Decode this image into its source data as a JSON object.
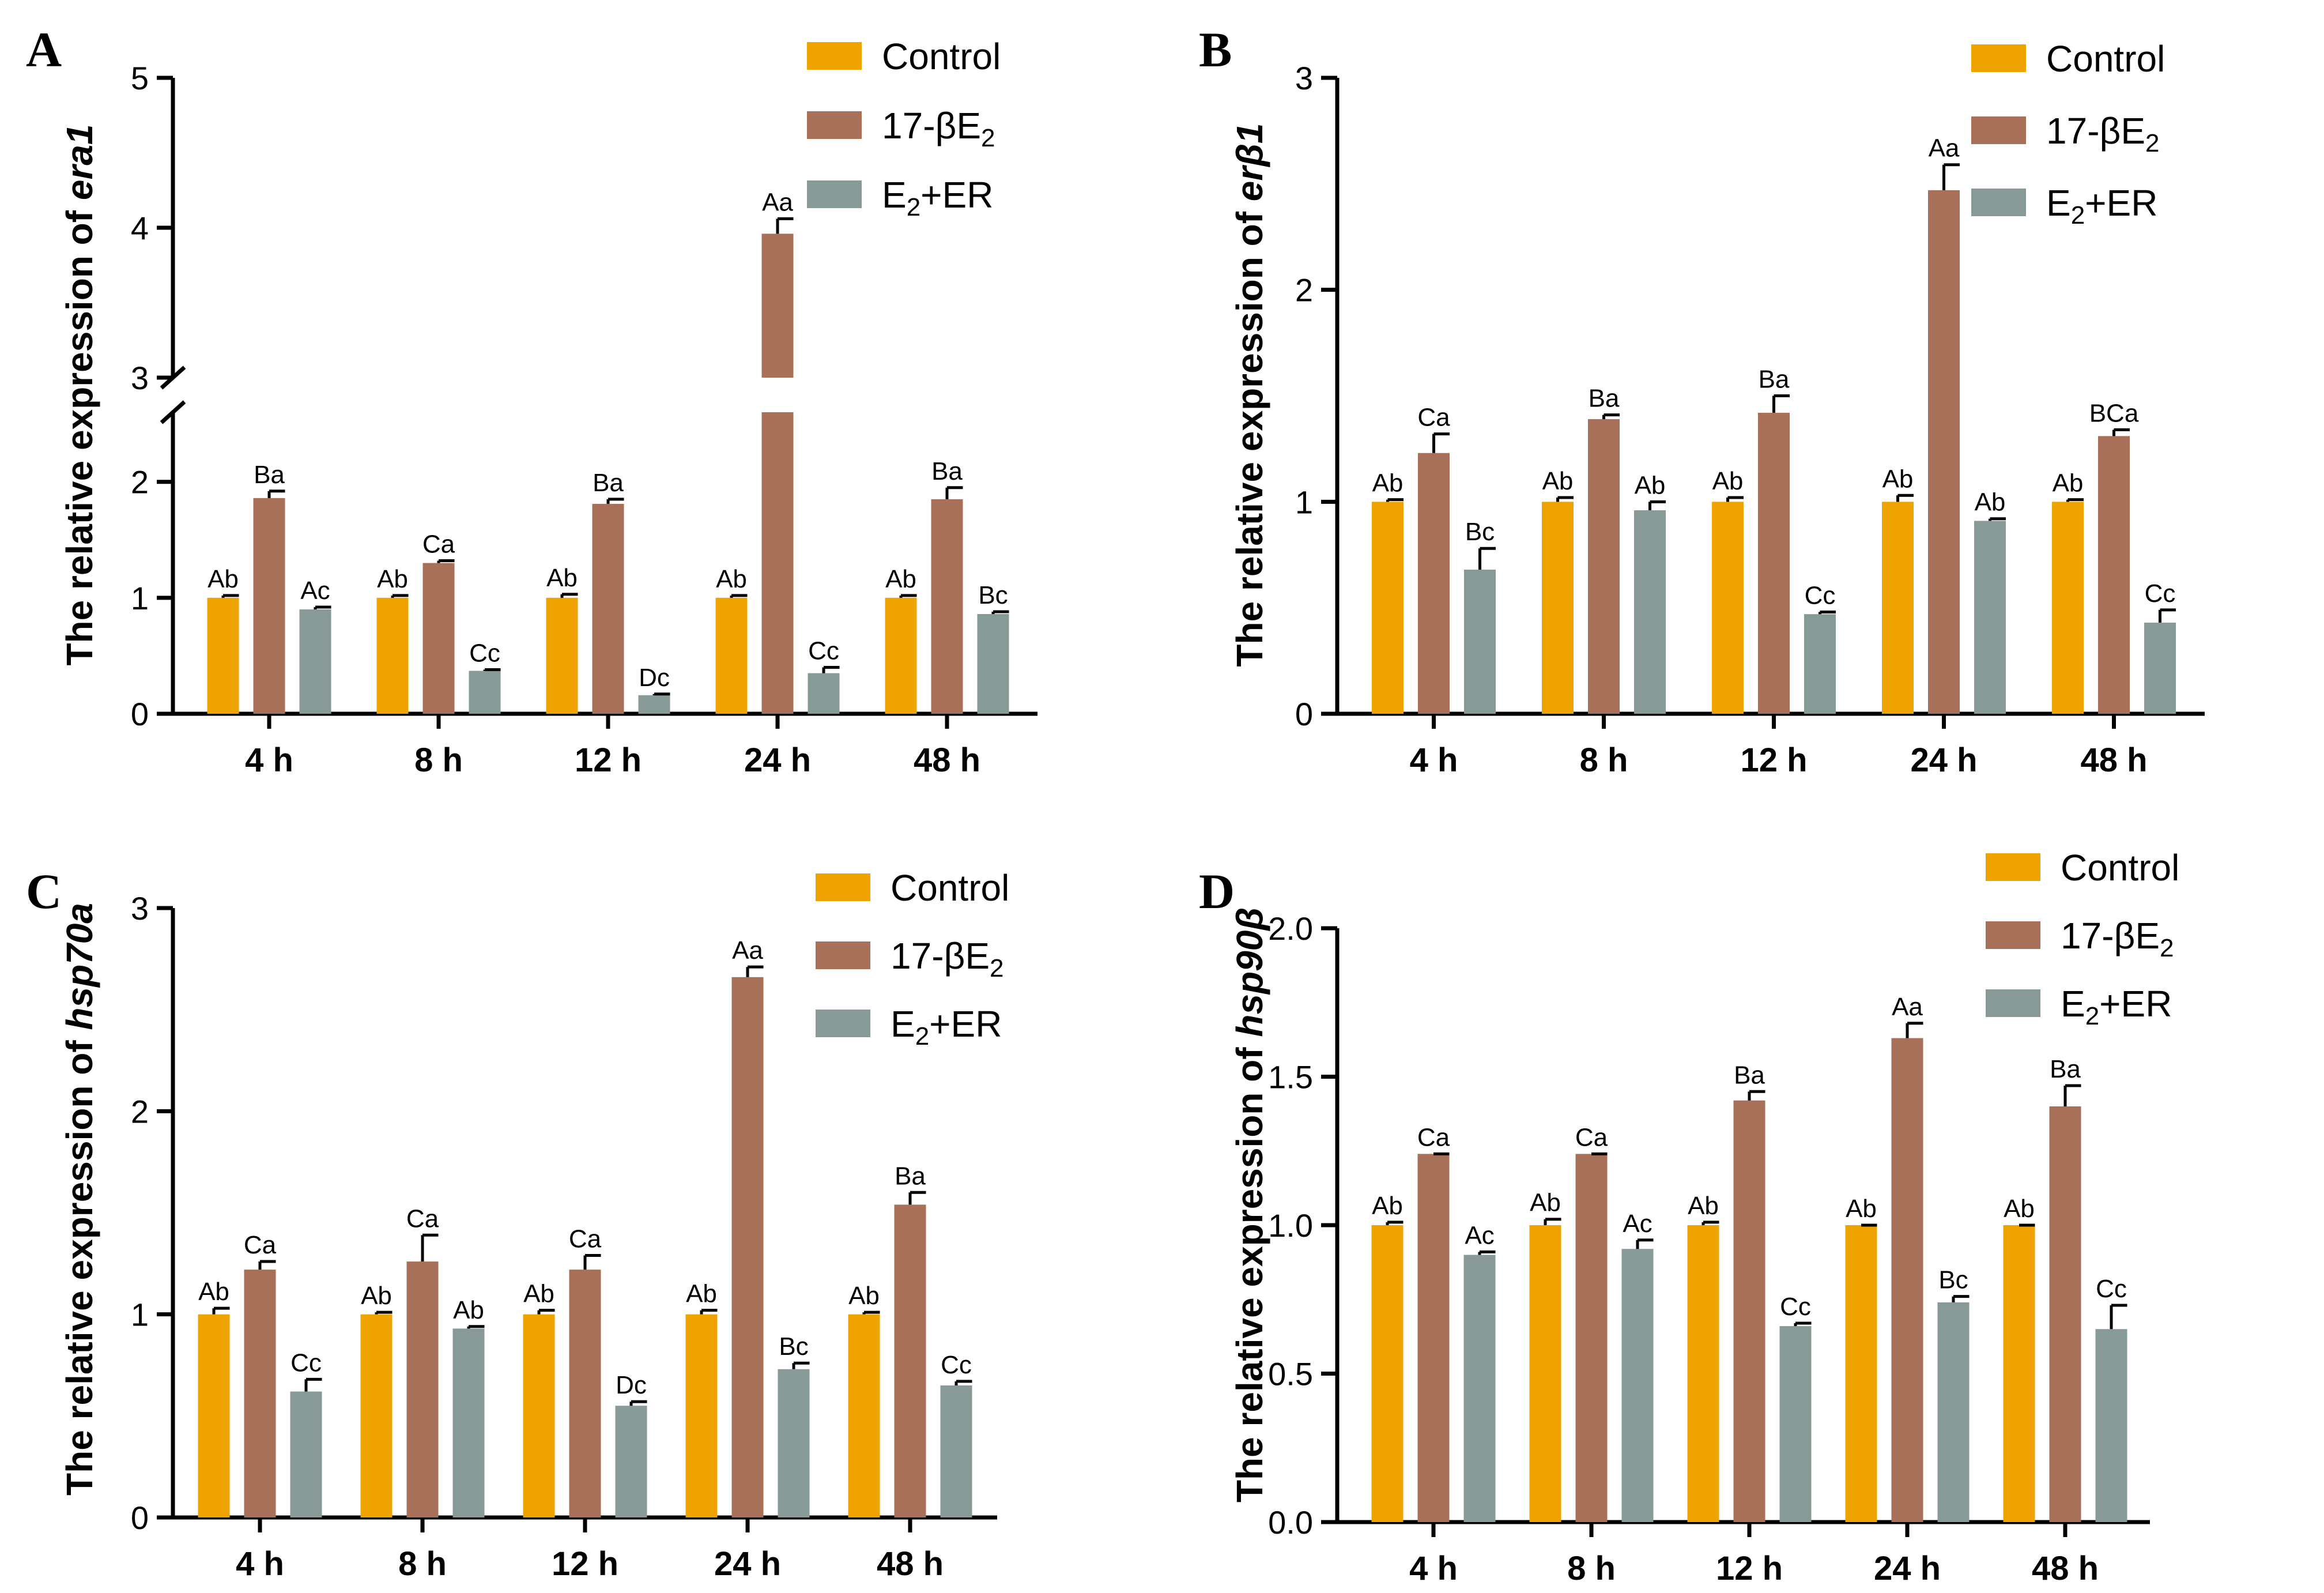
{
  "colors": {
    "Control": "#eea300",
    "17-βE2": "#a87058",
    "E2+ER": "#879a97",
    "text": "#000000",
    "axis": "#000000"
  },
  "legend": [
    {
      "key": "Control",
      "main": "Control",
      "sub": "",
      "post": ""
    },
    {
      "key": "17-βE2",
      "main": "17-βE",
      "sub": "2",
      "post": ""
    },
    {
      "key": "E2+ER",
      "main": "E",
      "sub": "2",
      "post": "+ER"
    }
  ],
  "chart_data": [
    {
      "type": "bar",
      "panel": "A",
      "ylabel_prefix": "The relative expression of ",
      "ylabel_gene": "era1",
      "categories": [
        "4 h",
        "8 h",
        "12 h",
        "24 h",
        "48 h"
      ],
      "yticks": [
        "0",
        "1",
        "2",
        "3",
        "4",
        "5"
      ],
      "ylim": [
        0,
        5
      ],
      "axis_break": {
        "lower": [
          0,
          2.6
        ],
        "upper": [
          3,
          5
        ]
      },
      "series": [
        {
          "name": "Control",
          "values": [
            1.0,
            1.0,
            1.0,
            1.0,
            1.0
          ],
          "errors": [
            0.02,
            0.02,
            0.03,
            0.02,
            0.02
          ],
          "labels": [
            "Ab",
            "Ab",
            "Ab",
            "Ab",
            "Ab"
          ]
        },
        {
          "name": "17-βE2",
          "values": [
            1.86,
            1.3,
            1.81,
            3.96,
            1.85
          ],
          "errors": [
            0.06,
            0.02,
            0.04,
            0.1,
            0.1
          ],
          "labels": [
            "Ba",
            "Ca",
            "Ba",
            "Aa",
            "Ba"
          ]
        },
        {
          "name": "E2+ER",
          "values": [
            0.9,
            0.37,
            0.16,
            0.35,
            0.86
          ],
          "errors": [
            0.02,
            0.01,
            0.01,
            0.05,
            0.02
          ],
          "labels": [
            "Ac",
            "Cc",
            "Dc",
            "Cc",
            "Bc"
          ]
        }
      ]
    },
    {
      "type": "bar",
      "panel": "B",
      "ylabel_prefix": "The relative expression of ",
      "ylabel_gene": "erβ1",
      "categories": [
        "4 h",
        "8 h",
        "12 h",
        "24 h",
        "48 h"
      ],
      "yticks": [
        "0",
        "1",
        "2",
        "3"
      ],
      "ylim": [
        0,
        3
      ],
      "series": [
        {
          "name": "Control",
          "values": [
            1.0,
            1.0,
            1.0,
            1.0,
            1.0
          ],
          "errors": [
            0.01,
            0.02,
            0.02,
            0.03,
            0.01
          ],
          "labels": [
            "Ab",
            "Ab",
            "Ab",
            "Ab",
            "Ab"
          ]
        },
        {
          "name": "17-βE2",
          "values": [
            1.23,
            1.39,
            1.42,
            2.47,
            1.31
          ],
          "errors": [
            0.09,
            0.02,
            0.08,
            0.12,
            0.03
          ],
          "labels": [
            "Ca",
            "Ba",
            "Ba",
            "Aa",
            "BCa"
          ]
        },
        {
          "name": "E2+ER",
          "values": [
            0.68,
            0.96,
            0.47,
            0.91,
            0.43
          ],
          "errors": [
            0.1,
            0.04,
            0.01,
            0.01,
            0.06
          ],
          "labels": [
            "Bc",
            "Ab",
            "Cc",
            "Ab",
            "Cc"
          ]
        }
      ]
    },
    {
      "type": "bar",
      "panel": "C",
      "ylabel_prefix": "The relative expression of ",
      "ylabel_gene": "hsp70a",
      "categories": [
        "4 h",
        "8 h",
        "12 h",
        "24 h",
        "48 h"
      ],
      "yticks": [
        "0",
        "1",
        "2",
        "3"
      ],
      "ylim": [
        0,
        3
      ],
      "series": [
        {
          "name": "Control",
          "values": [
            1.0,
            1.0,
            1.0,
            1.0,
            1.0
          ],
          "errors": [
            0.03,
            0.01,
            0.02,
            0.02,
            0.01
          ],
          "labels": [
            "Ab",
            "Ab",
            "Ab",
            "Ab",
            "Ab"
          ]
        },
        {
          "name": "17-βE2",
          "values": [
            1.22,
            1.26,
            1.22,
            2.66,
            1.54
          ],
          "errors": [
            0.04,
            0.13,
            0.07,
            0.05,
            0.06
          ],
          "labels": [
            "Ca",
            "Ca",
            "Ca",
            "Aa",
            "Ba"
          ]
        },
        {
          "name": "E2+ER",
          "values": [
            0.62,
            0.93,
            0.55,
            0.73,
            0.65
          ],
          "errors": [
            0.06,
            0.01,
            0.02,
            0.03,
            0.02
          ],
          "labels": [
            "Cc",
            "Ab",
            "Dc",
            "Bc",
            "Cc"
          ]
        }
      ]
    },
    {
      "type": "bar",
      "panel": "D",
      "ylabel_prefix": "The relative expression of ",
      "ylabel_gene": "hsp90β",
      "categories": [
        "4 h",
        "8 h",
        "12 h",
        "24 h",
        "48 h"
      ],
      "yticks": [
        "0.0",
        "0.5",
        "1.0",
        "1.5",
        "2.0"
      ],
      "ylim": [
        0,
        2
      ],
      "series": [
        {
          "name": "Control",
          "values": [
            1.0,
            1.0,
            1.0,
            1.0,
            1.0
          ],
          "errors": [
            0.01,
            0.02,
            0.01,
            0.0,
            0.0
          ],
          "labels": [
            "Ab",
            "Ab",
            "Ab",
            "Ab",
            "Ab"
          ]
        },
        {
          "name": "17-βE2",
          "values": [
            1.24,
            1.24,
            1.42,
            1.63,
            1.4
          ],
          "errors": [
            0.0,
            0.0,
            0.03,
            0.05,
            0.07
          ],
          "labels": [
            "Ca",
            "Ca",
            "Ba",
            "Aa",
            "Ba"
          ]
        },
        {
          "name": "E2+ER",
          "values": [
            0.9,
            0.92,
            0.66,
            0.74,
            0.65
          ],
          "errors": [
            0.01,
            0.03,
            0.01,
            0.02,
            0.08
          ],
          "labels": [
            "Ac",
            "Ac",
            "Cc",
            "Bc",
            "Cc"
          ]
        }
      ]
    }
  ]
}
